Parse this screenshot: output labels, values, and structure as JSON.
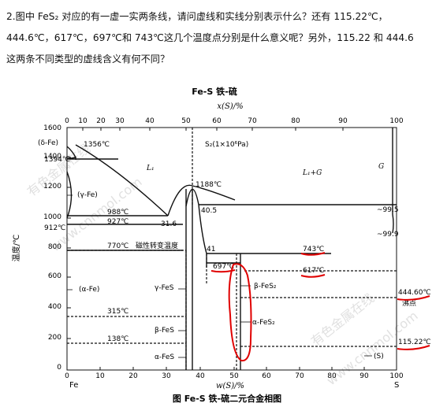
{
  "question": {
    "line1": "2.图中 FeS₂ 对应的有一虚一实两条线，请问虚线和实线分别表示什么？还有 115.22℃，",
    "line2": "444.6℃，617℃，697℃和 743℃这几个温度点分别是什么意义呢？另外，115.22 和 444.6",
    "line3": "这两条不同类型的虚线含义有何不同？"
  },
  "diagram": {
    "title": "Fe-S  铁-硫",
    "caption": "图 Fe-S 铁-硫二元合金相图",
    "top_axis_label": "x(S)/%",
    "bottom_axis_label": "w(S)/%",
    "y_axis_label": "温度/℃",
    "left_element": "Fe",
    "right_element": "S",
    "top_ticks": [
      0,
      10,
      20,
      30,
      40,
      50,
      60,
      70,
      80,
      90,
      100
    ],
    "bottom_ticks": [
      0,
      10,
      20,
      30,
      40,
      50,
      60,
      70,
      80,
      90,
      100
    ],
    "y_ticks": [
      0,
      200,
      400,
      600,
      800,
      1000,
      1200,
      1400,
      1600
    ],
    "temperature_labels": {
      "t1394": "1394℃",
      "t1356": "1356℃",
      "t1188": "1188℃",
      "t988": "988℃",
      "t927": "927℃",
      "t912": "912℃",
      "t770": "770℃",
      "t743": "743℃",
      "t697": "697℃",
      "t617": "617℃",
      "t315": "315℃",
      "t138": "138℃",
      "t444": "444.60℃",
      "t115": "115.22℃"
    },
    "composition_labels": {
      "c31_6": "31.6",
      "c40_5": "40.5",
      "c41": "41",
      "c99_5": "~99.5",
      "c99_9": "~99.9"
    },
    "phase_labels": {
      "delta_fe": "(δ-Fe)",
      "gamma_fe": "(γ-Fe)",
      "alpha_fe": "(α-Fe)",
      "s2_gas": "S₂(1×10⁶Pa)",
      "l1": "L₁",
      "l1_g": "L₁+G",
      "g": "G",
      "gamma_fes": "γ-FeS",
      "beta_fes": "β-FeS",
      "alpha_fes": "α-FeS",
      "beta_fes2": "β-FeS₂",
      "alpha_fes2": "α-FeS₂",
      "s_solid": "(S)",
      "magnetic": "磁性转变温度",
      "boiling": "沸点"
    },
    "watermarks": [
      "有色金属在线",
      "www.cnnmol.com",
      "有色金属在线",
      "www.cnnmol.com"
    ],
    "highlight_color": "#e00000",
    "line_color": "#111111"
  }
}
